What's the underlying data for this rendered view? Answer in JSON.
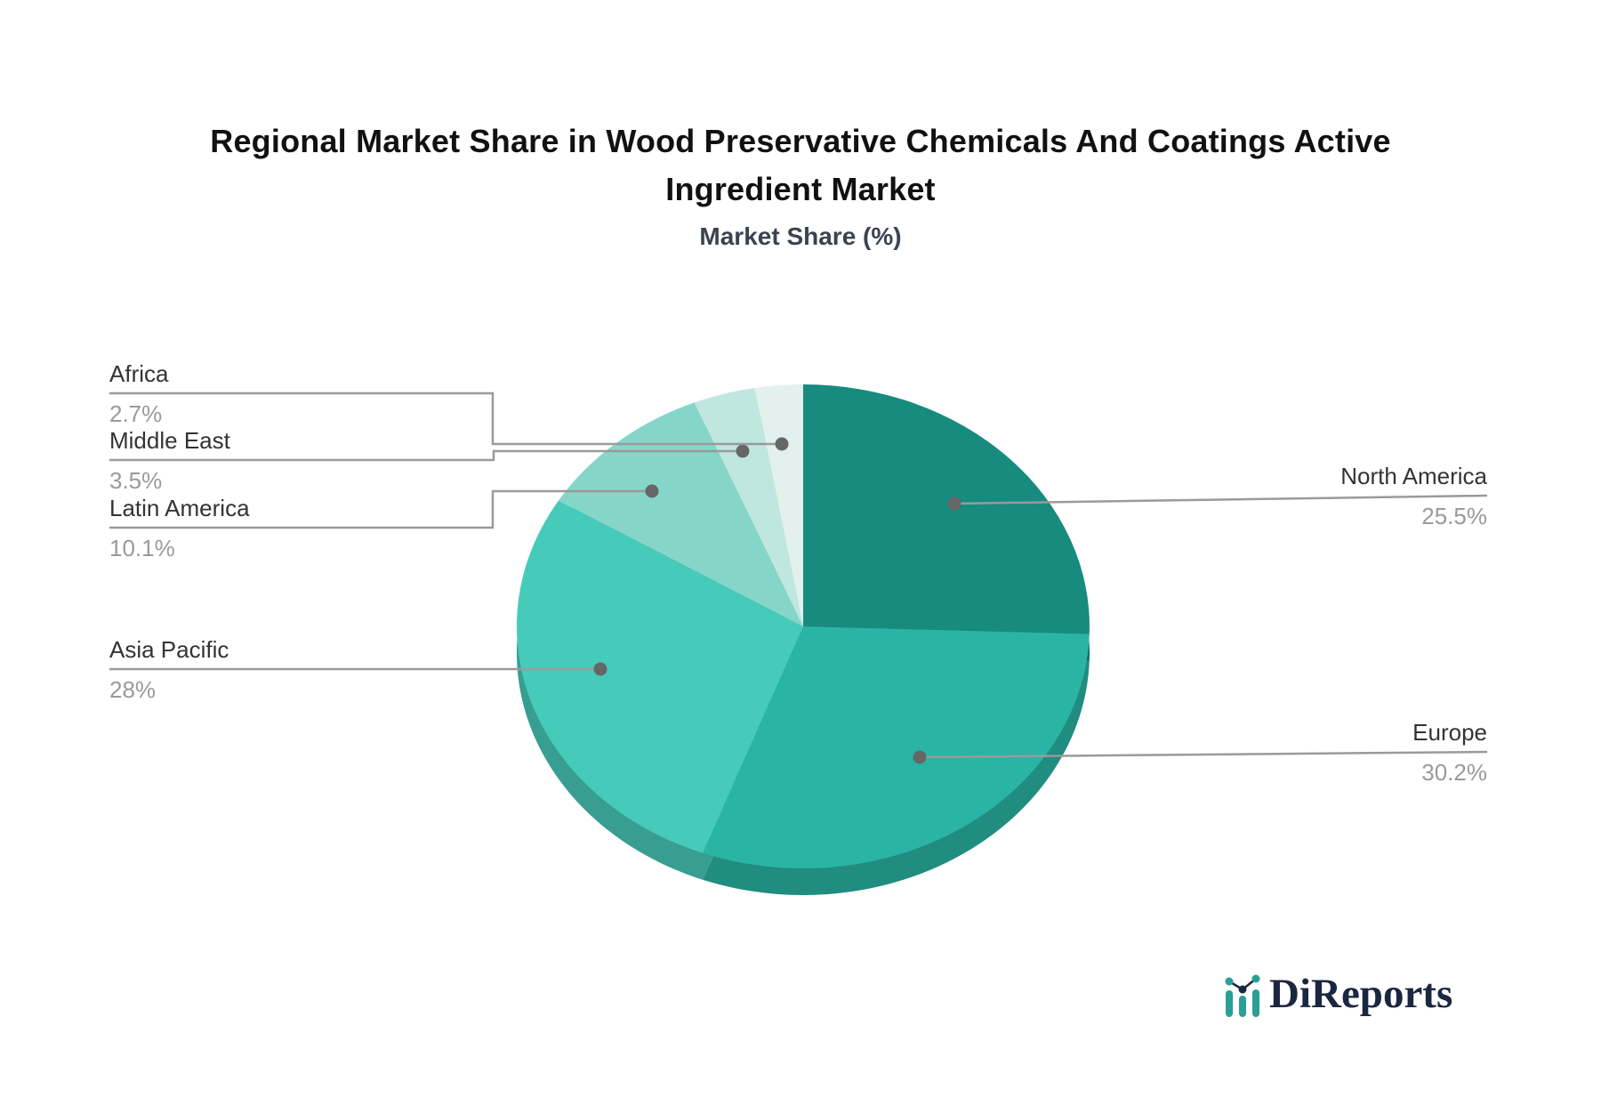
{
  "header": {
    "title_line1": "Regional Market Share in Wood Preservative Chemicals And Coatings Active",
    "title_line2": "Ingredient Market",
    "subtitle": "Market Share (%)"
  },
  "chart_data": {
    "type": "pie",
    "title": "Regional Market Share in Wood Preservative Chemicals And Coatings Active Ingredient Market",
    "subtitle": "Market Share (%)",
    "unit": "%",
    "start_angle_deg": 0,
    "direction": "clockwise",
    "style": "3d-pie-with-rim",
    "leader_line_color": "#9a9a9a",
    "dot_color": "#666666",
    "segments": [
      {
        "label": "North America",
        "value": 25.5,
        "display": "25.5%",
        "color": "#168b7e"
      },
      {
        "label": "Europe",
        "value": 30.2,
        "display": "30.2%",
        "color": "#2ab4a4"
      },
      {
        "label": "Asia Pacific",
        "value": 28,
        "display": "28%",
        "color": "#46cbba"
      },
      {
        "label": "Latin America",
        "value": 10.1,
        "display": "10.1%",
        "color": "#85d6c9"
      },
      {
        "label": "Middle East",
        "value": 3.5,
        "display": "3.5%",
        "color": "#bfe7e0"
      },
      {
        "label": "Africa",
        "value": 2.7,
        "display": "2.7%",
        "color": "#e2f1ee"
      }
    ]
  },
  "logo": {
    "text": "DiReports",
    "icon": "bar-line-chart-icon",
    "text_color": "#1a2740",
    "icon_color": "#2a9e97"
  }
}
